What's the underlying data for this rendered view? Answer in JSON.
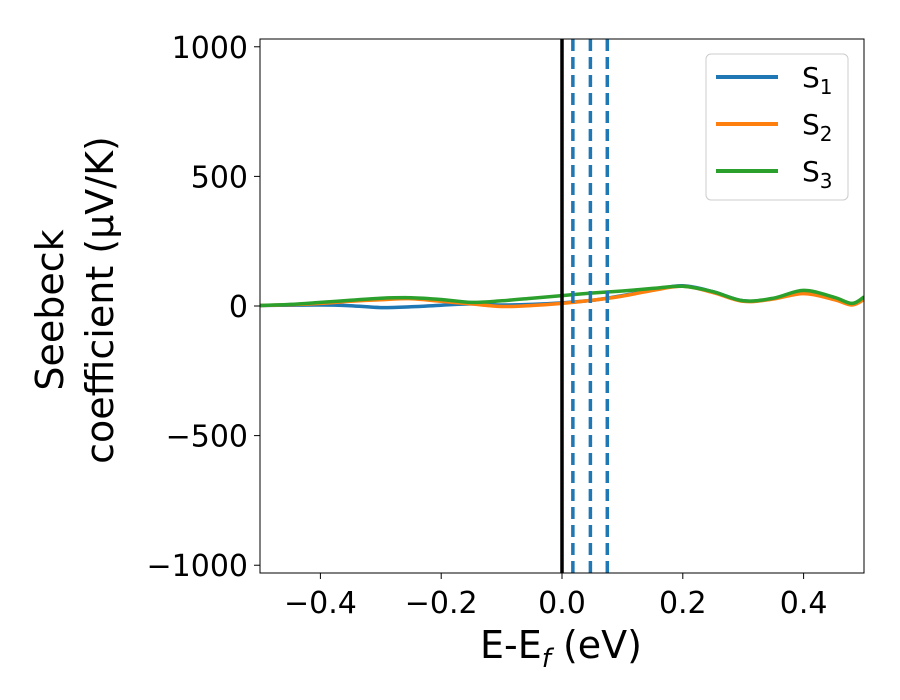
{
  "chart_data": {
    "type": "line",
    "xlabel": {
      "base": "E-E",
      "sub": "f",
      "tail": " (eV)"
    },
    "ylabel": {
      "line1": "Seebeck",
      "line2": "coefficient  (μV/K)"
    },
    "xlim": [
      -0.5,
      0.5
    ],
    "ylim": [
      -1030,
      1030
    ],
    "xticks": [
      -0.4,
      -0.2,
      0.0,
      0.2,
      0.4
    ],
    "xtick_labels": [
      "−0.4",
      "−0.2",
      "0.0",
      "0.2",
      "0.4"
    ],
    "yticks": [
      -1000,
      -500,
      0,
      500,
      1000
    ],
    "ytick_labels": [
      "−1000",
      "−500",
      "0",
      "500",
      "1000"
    ],
    "grid": false,
    "legend_position": "top-right",
    "vertical_lines": [
      {
        "x": 0.0,
        "style": "solid",
        "color": "#000000"
      },
      {
        "x": 0.018,
        "style": "dashed",
        "color": "#1f77b4"
      },
      {
        "x": 0.047,
        "style": "dashed",
        "color": "#1f77b4"
      },
      {
        "x": 0.075,
        "style": "dashed",
        "color": "#1f77b4"
      }
    ],
    "x": [
      -0.5,
      -0.45,
      -0.4,
      -0.35,
      -0.3,
      -0.25,
      -0.2,
      -0.15,
      -0.1,
      -0.05,
      0.0,
      0.05,
      0.1,
      0.15,
      0.2,
      0.25,
      0.3,
      0.35,
      0.4,
      0.45,
      0.48,
      0.5
    ],
    "series": [
      {
        "name": "S",
        "sub": "1",
        "color": "#1f77b4",
        "values": [
          2,
          3,
          4,
          1,
          -6,
          -3,
          3,
          8,
          4,
          6,
          12,
          22,
          40,
          62,
          78,
          55,
          20,
          28,
          55,
          28,
          5,
          28
        ]
      },
      {
        "name": "S",
        "sub": "2",
        "color": "#ff7f0e",
        "values": [
          2,
          5,
          10,
          18,
          24,
          28,
          18,
          8,
          -2,
          2,
          10,
          22,
          38,
          60,
          76,
          52,
          18,
          27,
          48,
          25,
          4,
          25
        ]
      },
      {
        "name": "S",
        "sub": "3",
        "color": "#2ca02c",
        "values": [
          2,
          6,
          14,
          22,
          30,
          32,
          25,
          14,
          20,
          30,
          40,
          50,
          58,
          68,
          76,
          55,
          20,
          30,
          60,
          34,
          10,
          35
        ]
      }
    ]
  }
}
